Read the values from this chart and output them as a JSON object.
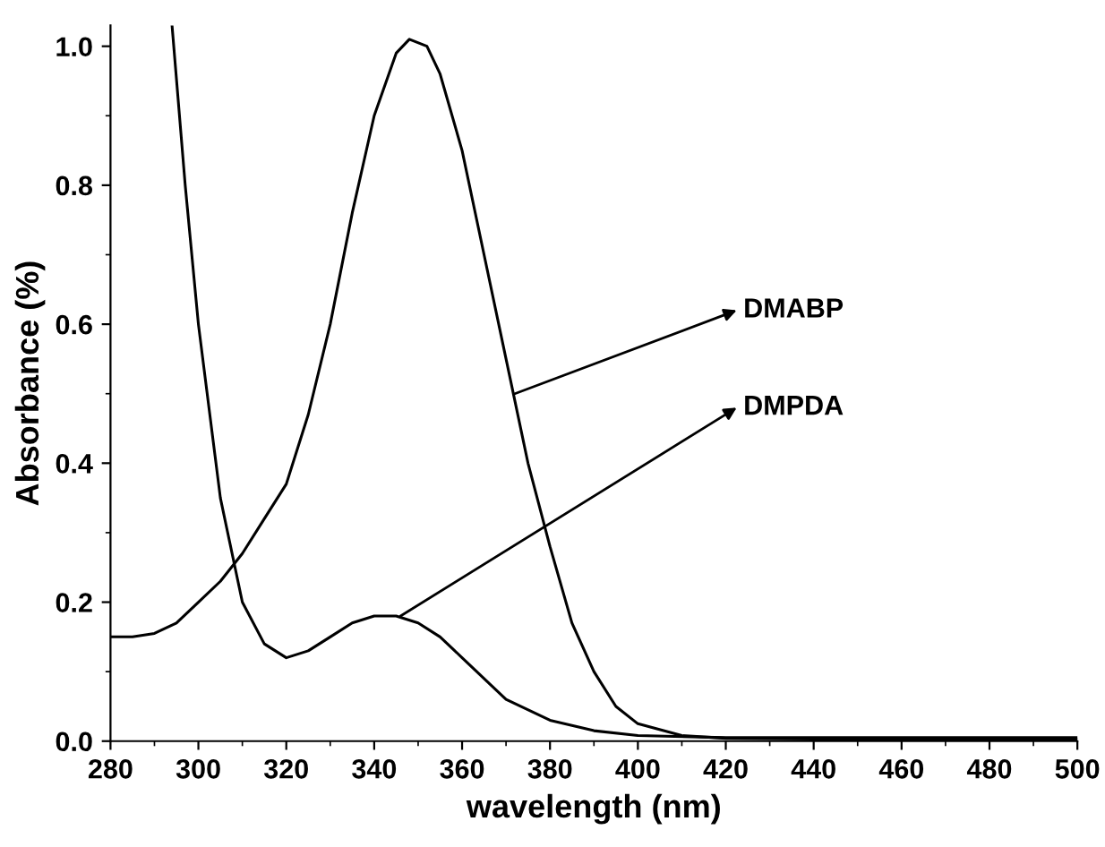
{
  "chart_data": {
    "type": "line",
    "xlabel": "wavelength (nm)",
    "ylabel": "Absorbance (%)",
    "xlim": [
      280,
      500
    ],
    "ylim": [
      0,
      1.03
    ],
    "xticks": [
      280,
      300,
      320,
      340,
      360,
      380,
      400,
      420,
      440,
      460,
      480,
      500
    ],
    "yticks": [
      {
        "value": 0,
        "label": "0.0"
      },
      {
        "value": 0.2,
        "label": "0.2"
      },
      {
        "value": 0.4,
        "label": "0.4"
      },
      {
        "value": 0.6,
        "label": "0.6"
      },
      {
        "value": 0.8,
        "label": "0.8"
      },
      {
        "value": 1,
        "label": "1.0"
      }
    ],
    "grid": false,
    "legend": false,
    "marker": "none",
    "line_style": "solid",
    "series": [
      {
        "color": "#000000",
        "x": [
          280,
          285,
          290,
          295,
          300,
          305,
          310,
          315,
          320,
          325,
          330,
          335,
          340,
          345,
          348,
          352,
          355,
          360,
          365,
          370,
          375,
          380,
          385,
          390,
          395,
          400,
          410,
          420,
          440,
          460,
          480,
          500
        ],
        "values": [
          0.15,
          0.15,
          0.155,
          0.17,
          0.2,
          0.23,
          0.27,
          0.32,
          0.37,
          0.47,
          0.6,
          0.76,
          0.9,
          0.99,
          1.01,
          1.0,
          0.96,
          0.85,
          0.7,
          0.55,
          0.4,
          0.28,
          0.17,
          0.1,
          0.05,
          0.025,
          0.008,
          0.004,
          0.003,
          0.003,
          0.003,
          0.003
        ]
      },
      {
        "color": "#000000",
        "x": [
          294,
          297,
          300,
          305,
          310,
          315,
          320,
          325,
          330,
          335,
          340,
          345,
          350,
          355,
          360,
          365,
          370,
          380,
          390,
          400,
          420,
          440,
          460,
          480,
          500
        ],
        "values": [
          1.03,
          0.8,
          0.6,
          0.35,
          0.2,
          0.14,
          0.12,
          0.13,
          0.15,
          0.17,
          0.18,
          0.18,
          0.17,
          0.15,
          0.12,
          0.09,
          0.06,
          0.03,
          0.015,
          0.008,
          0.005,
          0.005,
          0.005,
          0.005,
          0.005
        ]
      }
    ],
    "annotations": [
      {
        "text": "DMABP",
        "x": 372,
        "y": 0.5
      },
      {
        "text": "DMPDA",
        "x": 346,
        "y": 0.18
      }
    ]
  }
}
